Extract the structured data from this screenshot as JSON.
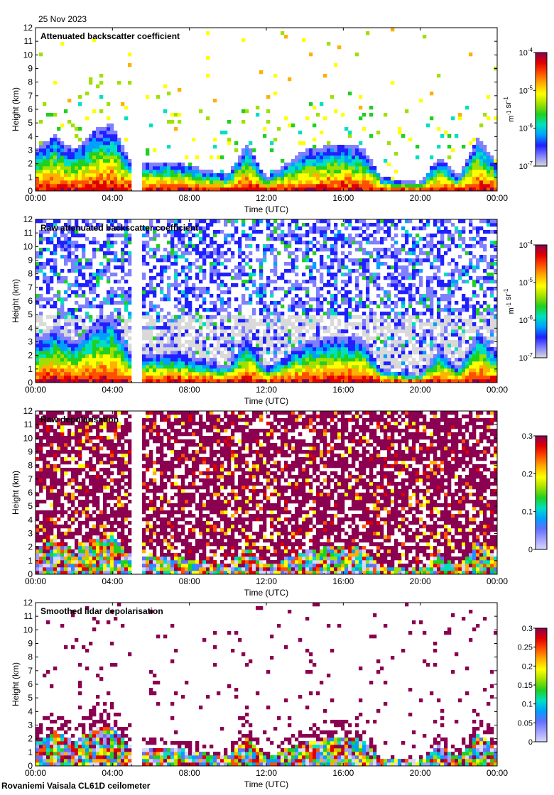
{
  "date": "25 Nov 2023",
  "footer": "Rovaniemi Vaisala CL61D ceilometer",
  "colors": {
    "scale": [
      "#d9d9d9",
      "#8080ff",
      "#2020ff",
      "#00a0ff",
      "#00e0c0",
      "#20d020",
      "#a0e000",
      "#ffff00",
      "#ffb000",
      "#ff5000",
      "#e00000",
      "#8b0050"
    ]
  },
  "chart_data": [
    {
      "type": "heatmap",
      "title": "Attenuated backscatter coefficient",
      "xlabel": "Time (UTC)",
      "ylabel": "Height (km)",
      "x_ticks": [
        "00:00",
        "04:00",
        "08:00",
        "12:00",
        "16:00",
        "20:00",
        "00:00"
      ],
      "y_ticks": [
        "0",
        "1",
        "2",
        "3",
        "4",
        "5",
        "6",
        "7",
        "8",
        "9",
        "10",
        "11",
        "12"
      ],
      "xlim": [
        0,
        24
      ],
      "ylim": [
        0,
        12
      ],
      "data_gap_hours": [
        5.0,
        5.5
      ],
      "colorbar": {
        "labels": [
          "10-4",
          "10-5",
          "10-6",
          "10-7"
        ],
        "values": [
          0.0001,
          1e-05,
          1e-06,
          1e-07
        ],
        "unit": "m-1 sr-1",
        "log": true
      }
    },
    {
      "type": "heatmap",
      "title": "Raw attenuated backscatter coefficient",
      "xlabel": "Time (UTC)",
      "ylabel": "Height (km)",
      "x_ticks": [
        "00:00",
        "04:00",
        "08:00",
        "12:00",
        "16:00",
        "20:00",
        "00:00"
      ],
      "y_ticks": [
        "0",
        "1",
        "2",
        "3",
        "4",
        "5",
        "6",
        "7",
        "8",
        "9",
        "10",
        "11",
        "12"
      ],
      "xlim": [
        0,
        24
      ],
      "ylim": [
        0,
        12
      ],
      "data_gap_hours": [
        5.0,
        5.5
      ],
      "colorbar": {
        "labels": [
          "10-4",
          "10-5",
          "10-6",
          "10-7"
        ],
        "values": [
          0.0001,
          1e-05,
          1e-06,
          1e-07
        ],
        "unit": "m-1 sr-1",
        "log": true
      }
    },
    {
      "type": "heatmap",
      "title": "Raw depolarisation",
      "xlabel": "Time (UTC)",
      "ylabel": "Height (km)",
      "x_ticks": [
        "00:00",
        "04:00",
        "08:00",
        "12:00",
        "16:00",
        "20:00",
        "00:00"
      ],
      "y_ticks": [
        "0",
        "1",
        "2",
        "3",
        "4",
        "5",
        "6",
        "7",
        "8",
        "9",
        "10",
        "11",
        "12"
      ],
      "xlim": [
        0,
        24
      ],
      "ylim": [
        0,
        12
      ],
      "data_gap_hours": [
        5.0,
        5.5
      ],
      "colorbar": {
        "labels": [
          "0.3",
          "0.2",
          "0.1",
          "0"
        ],
        "values": [
          0.3,
          0.2,
          0.1,
          0
        ],
        "unit": "",
        "log": false
      }
    },
    {
      "type": "heatmap",
      "title": "Smoothed lidar depolarisation",
      "xlabel": "Time (UTC)",
      "ylabel": "Height (km)",
      "x_ticks": [
        "00:00",
        "04:00",
        "08:00",
        "12:00",
        "16:00",
        "20:00",
        "00:00"
      ],
      "y_ticks": [
        "0",
        "1",
        "2",
        "3",
        "4",
        "5",
        "6",
        "7",
        "8",
        "9",
        "10",
        "11",
        "12"
      ],
      "xlim": [
        0,
        24
      ],
      "ylim": [
        0,
        12
      ],
      "data_gap_hours": [
        5.0,
        5.5
      ],
      "colorbar": {
        "labels": [
          "0.3",
          "0.25",
          "0.2",
          "0.15",
          "0.1",
          "0.05",
          "0"
        ],
        "values": [
          0.3,
          0.25,
          0.2,
          0.15,
          0.1,
          0.05,
          0
        ],
        "unit": "",
        "log": false
      }
    }
  ]
}
